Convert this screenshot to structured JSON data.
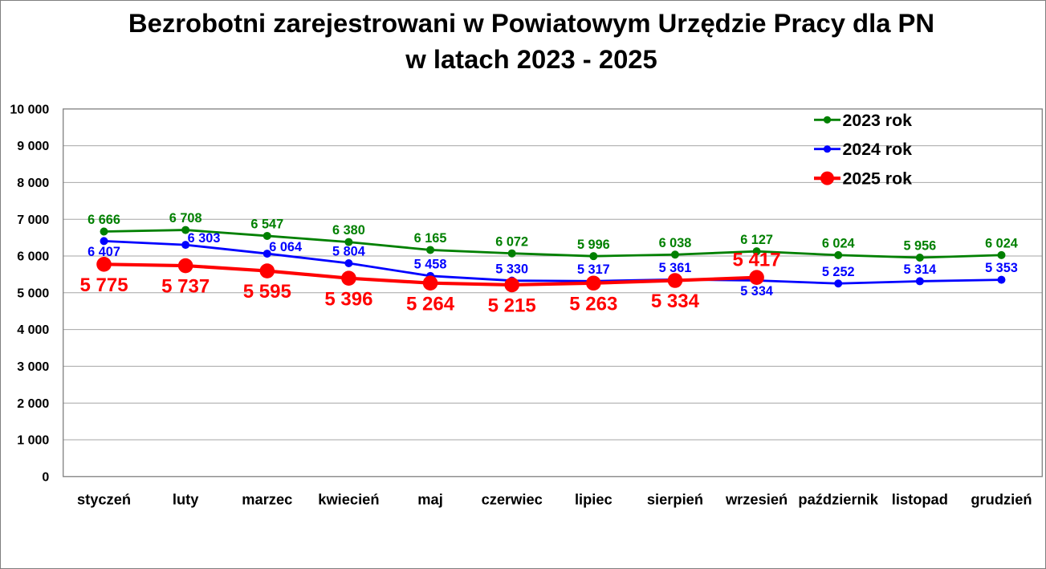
{
  "chart_data": {
    "type": "line",
    "title": "Bezrobotni zarejestrowani w Powiatowym Urzędzie Pracy dla PN w latach 2023 - 2025",
    "title_lines": [
      "Bezrobotni zarejestrowani w Powiatowym Urzędzie Pracy dla PN",
      "w latach 2023 - 2025"
    ],
    "categories": [
      "styczeń",
      "luty",
      "marzec",
      "kwiecień",
      "maj",
      "czerwiec",
      "lipiec",
      "sierpień",
      "wrzesień",
      "październik",
      "listopad",
      "grudzień"
    ],
    "xlabel": "",
    "ylabel": "",
    "ylim": [
      0,
      10000
    ],
    "y_tick_step": 1000,
    "y_tick_labels": [
      "0",
      "1 000",
      "2 000",
      "3 000",
      "4 000",
      "5 000",
      "6 000",
      "7 000",
      "8 000",
      "9 000",
      "10 000"
    ],
    "grid": true,
    "number_format": "space-thousands",
    "legend_position": "top-right",
    "series": [
      {
        "name": "2023 rok",
        "color": "#008000",
        "values": [
          6666,
          6708,
          6547,
          6380,
          6165,
          6072,
          5996,
          6038,
          6127,
          6024,
          5956,
          6024
        ],
        "labels": [
          "6 666",
          "6 708",
          "6 547",
          "6 380",
          "6 165",
          "6 072",
          "5 996",
          "6 038",
          "6 127",
          "6 024",
          "5 956",
          "6 024"
        ],
        "label_positions": [
          "above",
          "above",
          "above",
          "above",
          "above",
          "above",
          "above",
          "above",
          "above",
          "above",
          "above",
          "above"
        ],
        "emphasis": false
      },
      {
        "name": "2024 rok",
        "color": "#0000ff",
        "values": [
          6407,
          6303,
          6064,
          5804,
          5458,
          5330,
          5317,
          5361,
          5334,
          5252,
          5314,
          5353
        ],
        "labels": [
          "6 407",
          "6 303",
          "6 064",
          "5 804",
          "5 458",
          "5 330",
          "5 317",
          "5 361",
          "5 334",
          "5 252",
          "5 314",
          "5 353"
        ],
        "label_positions": [
          "below",
          "above-right",
          "above-right",
          "above",
          "above",
          "above",
          "above",
          "above",
          "below",
          "above",
          "above",
          "above"
        ],
        "emphasis": false
      },
      {
        "name": "2025 rok",
        "color": "#ff0000",
        "values": [
          5775,
          5737,
          5595,
          5396,
          5264,
          5215,
          5263,
          5334,
          5417
        ],
        "labels": [
          "5 775",
          "5 737",
          "5 595",
          "5 396",
          "5 264",
          "5 215",
          "5 263",
          "5 334",
          "5 417"
        ],
        "label_positions": [
          "below",
          "below",
          "below",
          "below",
          "below",
          "below",
          "below",
          "below",
          "above"
        ],
        "emphasis": true
      }
    ]
  },
  "colors": {
    "background": "#ffffff",
    "chart_border": "#7f7f7f",
    "plot_border": "#808080",
    "gridline": "#a6a6a6",
    "title_text": "#000000",
    "axis_text": "#000000",
    "legend_text": "#000000",
    "series_2023": "#008000",
    "series_2024": "#0000ff",
    "series_2025": "#ff0000"
  }
}
